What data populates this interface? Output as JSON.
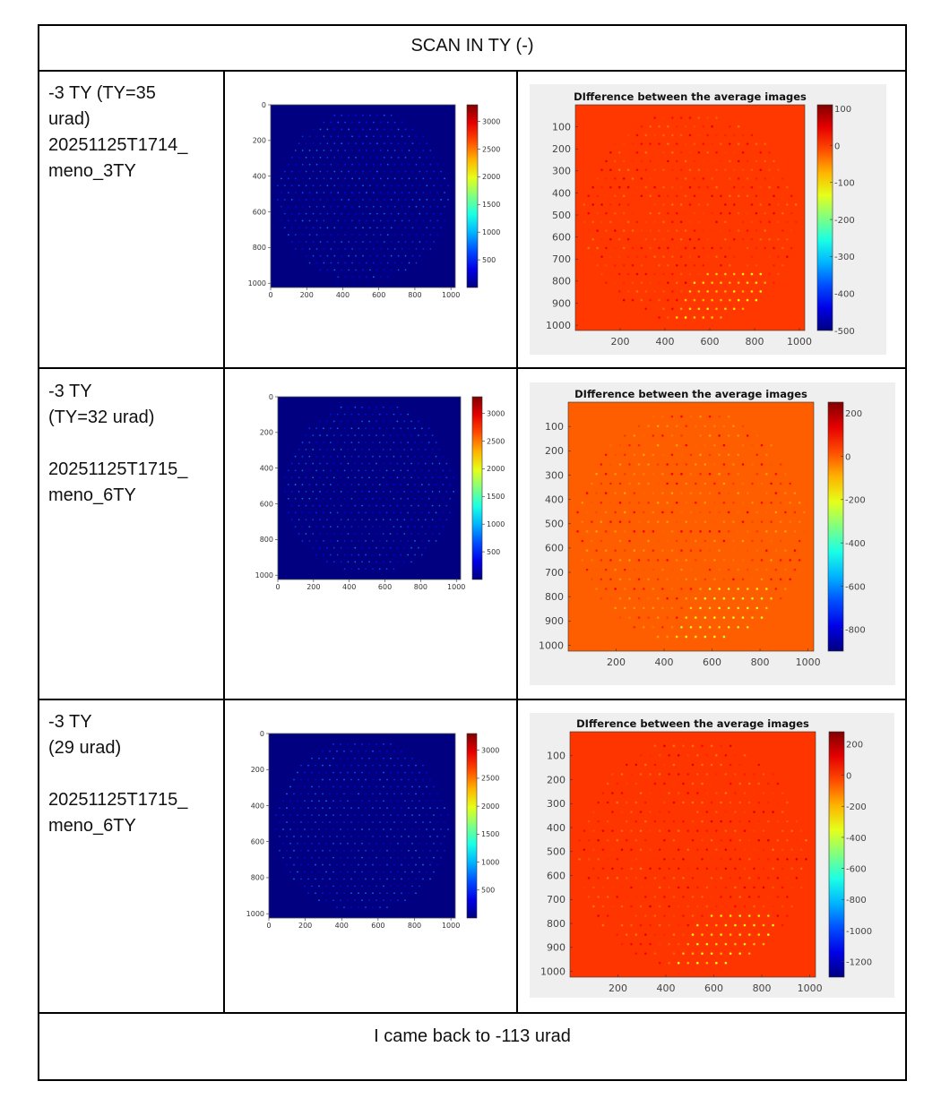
{
  "header": "SCAN IN TY (-)",
  "rows": [
    {
      "label_lines": [
        "-3 TY (TY=35",
        "urad)",
        "20251125T1714_",
        "meno_3TY"
      ]
    },
    {
      "label_lines": [
        "-3 TY",
        "(TY=32 urad)",
        "",
        "20251125T1715_",
        "meno_6TY"
      ]
    },
    {
      "label_lines": [
        "-3 TY",
        "(29 urad)",
        "",
        "20251125T1715_",
        "meno_6TY"
      ]
    }
  ],
  "footer": "I came back to -113 urad",
  "chart_data": [
    {
      "type": "heatmap",
      "style": "matplotlib",
      "title": "",
      "xticks": [
        0,
        200,
        400,
        600,
        800,
        1000
      ],
      "yticks": [
        0,
        200,
        400,
        600,
        800,
        1000
      ],
      "xlim": [
        0,
        1024
      ],
      "ylim": [
        0,
        1024
      ],
      "colorbar_ticks": [
        500,
        1000,
        1500,
        2000,
        2500,
        3000
      ],
      "clim": [
        0,
        3300
      ],
      "background_value": 0,
      "spot_value": 800,
      "colormap": "jet"
    },
    {
      "type": "heatmap",
      "style": "matlab",
      "title": "DIfference between the average images",
      "xticks": [
        200,
        400,
        600,
        800,
        1000
      ],
      "yticks": [
        100,
        200,
        300,
        400,
        500,
        600,
        700,
        800,
        900,
        1000
      ],
      "xlim": [
        0,
        1024
      ],
      "ylim": [
        0,
        1024
      ],
      "colorbar_ticks": [
        100,
        0,
        -100,
        -200,
        -300,
        -400,
        -500
      ],
      "clim": [
        -500,
        110
      ],
      "background_value": 0,
      "spot_value": -120,
      "colormap": "jet"
    },
    {
      "type": "heatmap",
      "style": "matplotlib",
      "title": "",
      "xticks": [
        0,
        200,
        400,
        600,
        800,
        1000
      ],
      "yticks": [
        0,
        200,
        400,
        600,
        800,
        1000
      ],
      "xlim": [
        0,
        1024
      ],
      "ylim": [
        0,
        1024
      ],
      "colorbar_ticks": [
        500,
        1000,
        1500,
        2000,
        2500,
        3000
      ],
      "clim": [
        0,
        3300
      ],
      "background_value": 0,
      "spot_value": 800,
      "colormap": "jet"
    },
    {
      "type": "heatmap",
      "style": "matlab",
      "title": "DIfference between the average images",
      "xticks": [
        200,
        400,
        600,
        800,
        1000
      ],
      "yticks": [
        100,
        200,
        300,
        400,
        500,
        600,
        700,
        800,
        900,
        1000
      ],
      "xlim": [
        0,
        1024
      ],
      "ylim": [
        0,
        1024
      ],
      "colorbar_ticks": [
        200,
        0,
        -200,
        -400,
        -600,
        -800
      ],
      "clim": [
        -900,
        250
      ],
      "background_value": 0,
      "spot_value": -250,
      "colormap": "jet"
    },
    {
      "type": "heatmap",
      "style": "matplotlib",
      "title": "",
      "xticks": [
        0,
        200,
        400,
        600,
        800,
        1000
      ],
      "yticks": [
        0,
        200,
        400,
        600,
        800,
        1000
      ],
      "xlim": [
        0,
        1024
      ],
      "ylim": [
        0,
        1024
      ],
      "colorbar_ticks": [
        500,
        1000,
        1500,
        2000,
        2500,
        3000
      ],
      "clim": [
        0,
        3300
      ],
      "background_value": 0,
      "spot_value": 800,
      "colormap": "jet"
    },
    {
      "type": "heatmap",
      "style": "matlab",
      "title": "DIfference between the average images",
      "xticks": [
        200,
        400,
        600,
        800,
        1000
      ],
      "yticks": [
        100,
        200,
        300,
        400,
        500,
        600,
        700,
        800,
        900,
        1000
      ],
      "xlim": [
        0,
        1024
      ],
      "ylim": [
        0,
        1024
      ],
      "colorbar_ticks": [
        200,
        0,
        -200,
        -400,
        -600,
        -800,
        -1000,
        -1200
      ],
      "clim": [
        -1300,
        280
      ],
      "background_value": 0,
      "spot_value": -350,
      "colormap": "jet"
    }
  ]
}
